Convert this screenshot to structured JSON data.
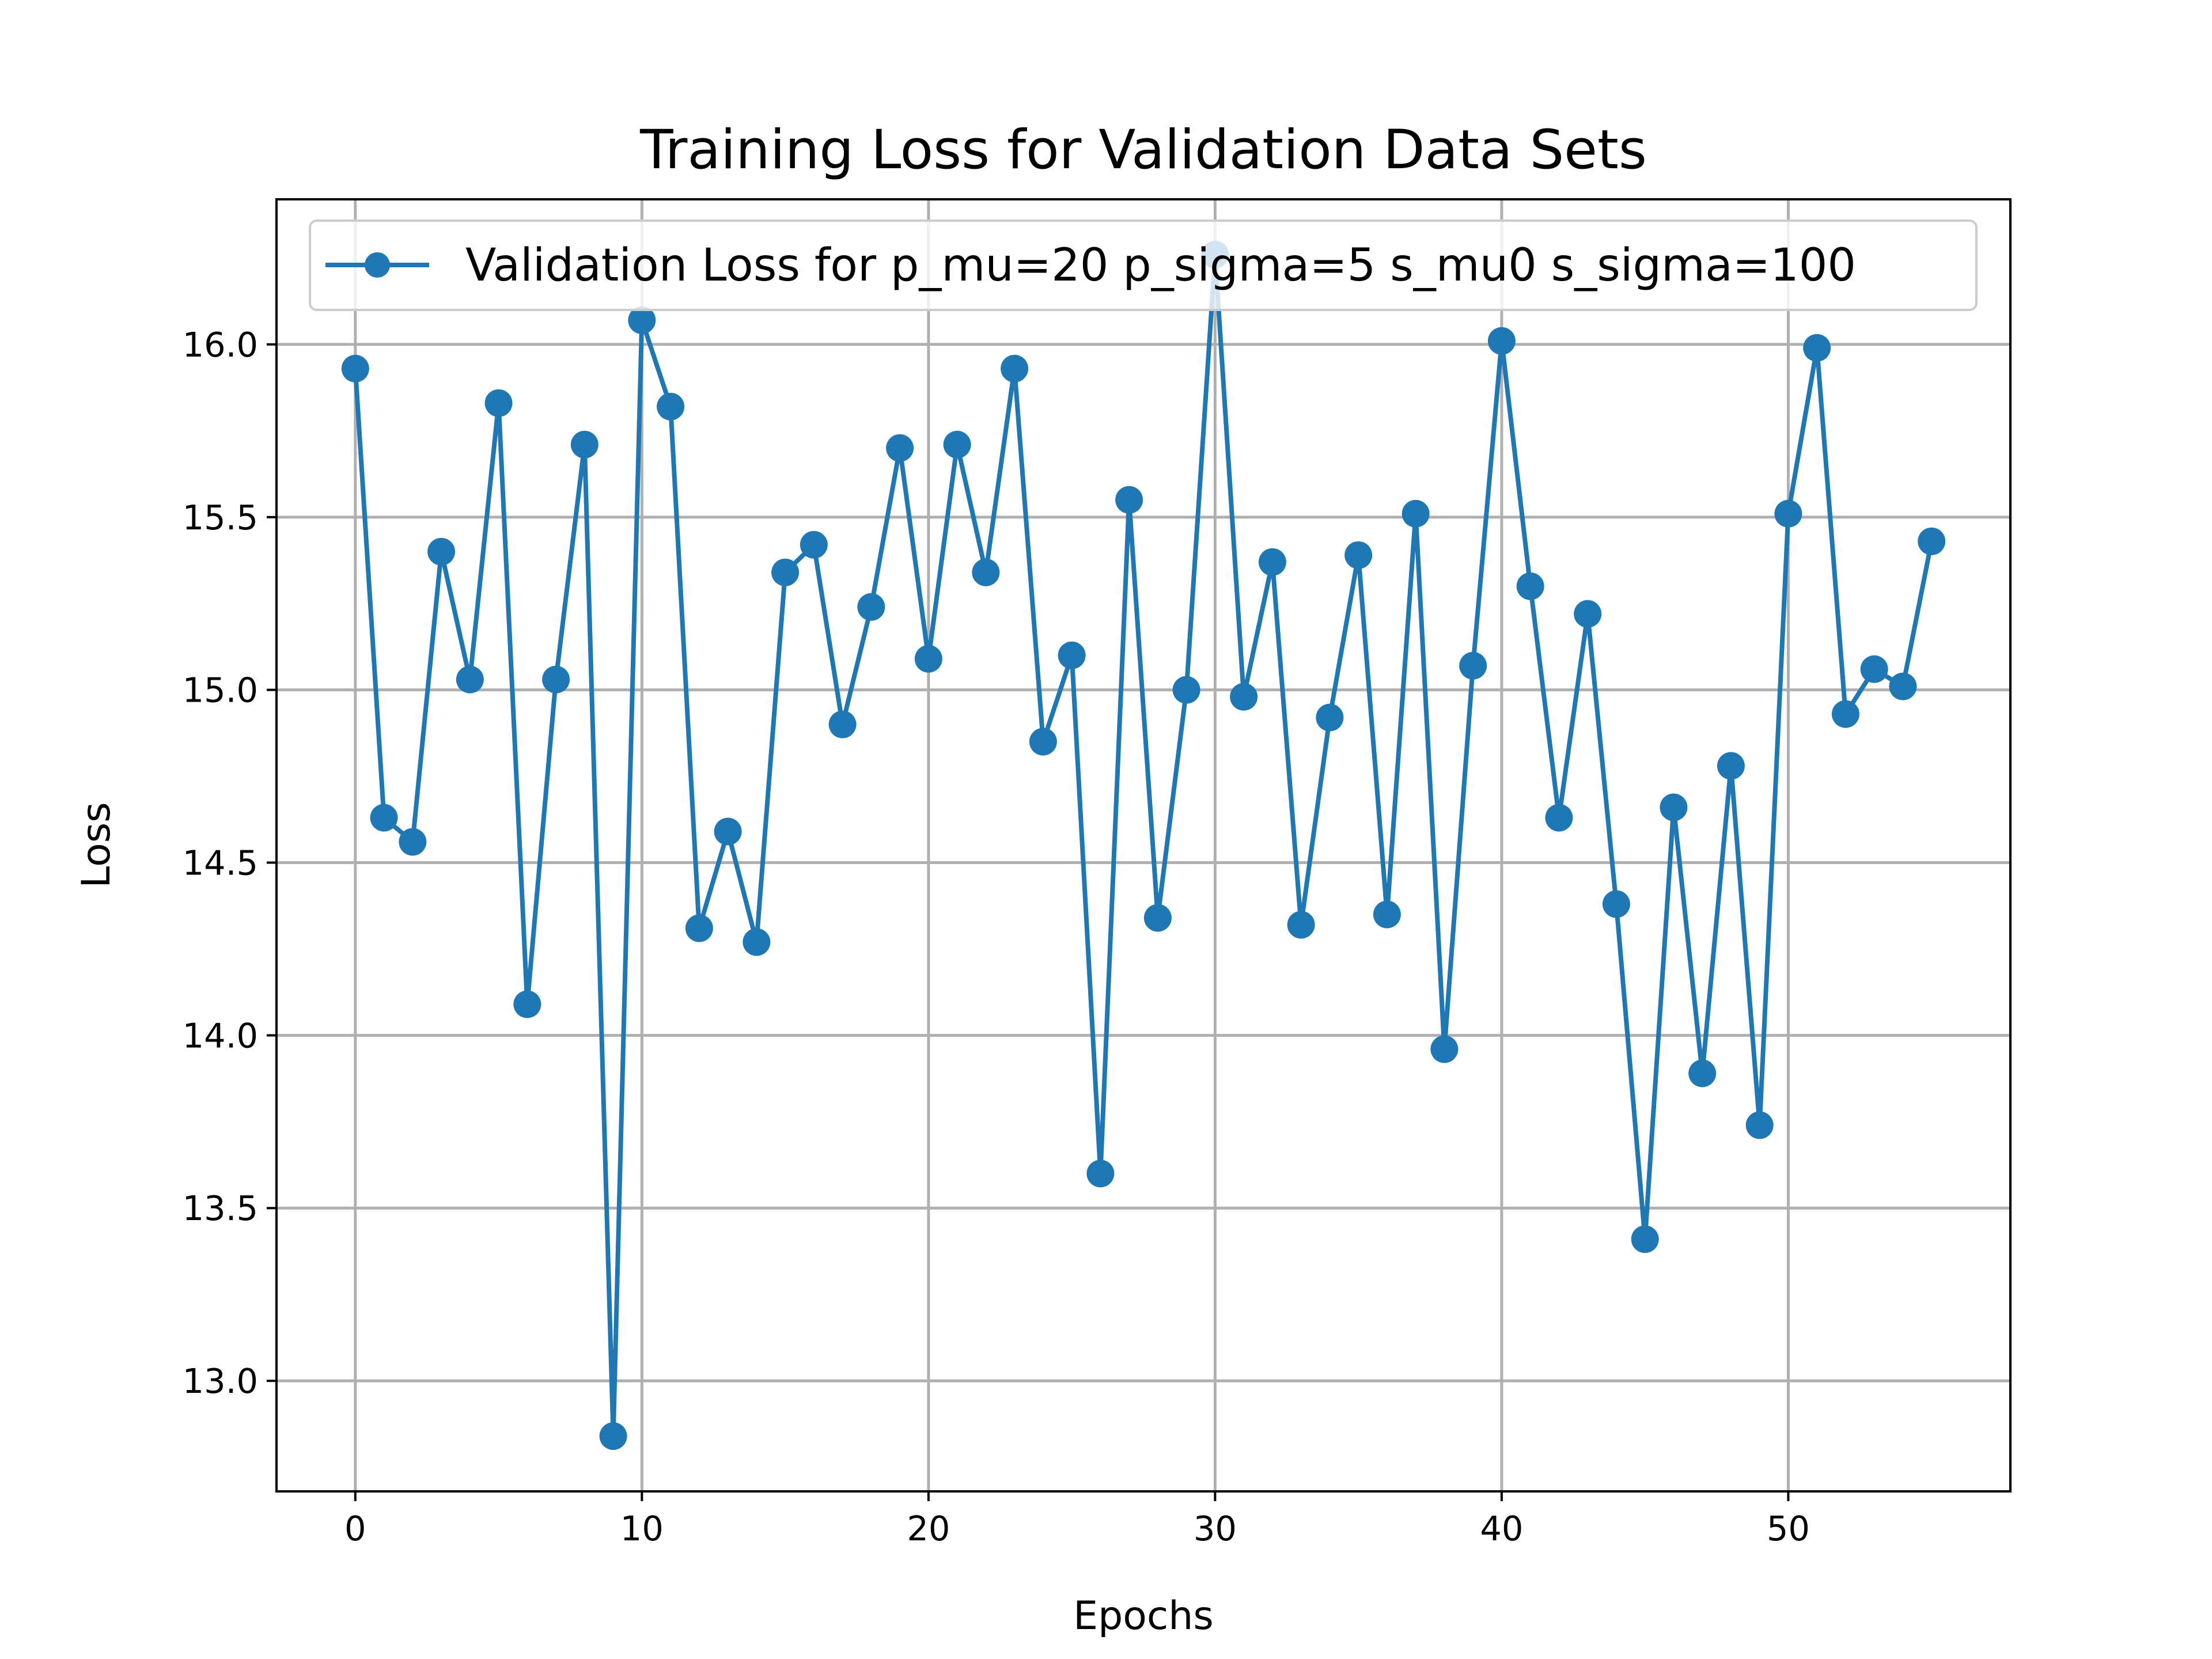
{
  "chart_data": {
    "type": "line",
    "title": "Training Loss for Validation Data Sets",
    "xlabel": "Epochs",
    "ylabel": "Loss",
    "xlim": [
      -2.75,
      57.75
    ],
    "ylim": [
      12.68,
      16.42
    ],
    "xticks": [
      0,
      10,
      20,
      30,
      40,
      50
    ],
    "yticks": [
      13.0,
      13.5,
      14.0,
      14.5,
      15.0,
      15.5,
      16.0
    ],
    "grid": true,
    "legend": "top",
    "series": [
      {
        "name": "Validation Loss for p_mu=20 p_sigma=5 s_mu0 s_sigma=100",
        "color": "#1f77b4",
        "marker": "circle",
        "x": [
          0,
          1,
          2,
          3,
          4,
          5,
          6,
          7,
          8,
          9,
          10,
          11,
          12,
          13,
          14,
          15,
          16,
          17,
          18,
          19,
          20,
          21,
          22,
          23,
          24,
          25,
          26,
          27,
          28,
          29,
          30,
          31,
          32,
          33,
          34,
          35,
          36,
          37,
          38,
          39,
          40,
          41,
          42,
          43,
          44,
          45,
          46,
          47,
          48,
          49,
          50,
          51,
          52,
          53,
          54,
          55
        ],
        "y": [
          15.93,
          14.63,
          14.56,
          15.4,
          15.03,
          15.83,
          14.09,
          15.03,
          15.71,
          12.84,
          16.07,
          15.82,
          14.31,
          14.59,
          14.27,
          15.34,
          15.42,
          14.9,
          15.24,
          15.7,
          15.09,
          15.71,
          15.34,
          15.93,
          14.85,
          15.1,
          13.6,
          15.55,
          14.34,
          15.0,
          16.26,
          14.98,
          15.37,
          14.32,
          14.92,
          15.39,
          14.35,
          15.51,
          13.96,
          15.07,
          16.01,
          15.3,
          14.63,
          15.22,
          14.38,
          13.41,
          14.66,
          13.89,
          14.78,
          13.74,
          15.51,
          15.99,
          14.93,
          15.06,
          15.01,
          15.43
        ]
      }
    ]
  }
}
